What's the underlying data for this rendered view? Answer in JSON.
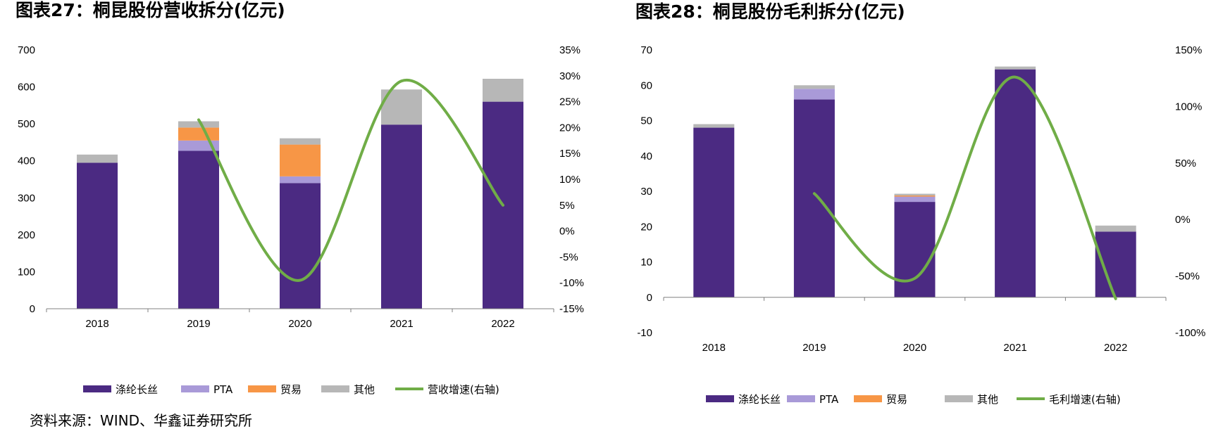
{
  "colors": {
    "polyester": "#4B2A82",
    "pta": "#A99AD8",
    "trade": "#F79646",
    "other": "#B7B7B7",
    "growth": "#70AD47"
  },
  "chart_data": [
    {
      "type": "bar",
      "stacked": true,
      "title": "图表27：桐昆股份营收拆分(亿元)",
      "categories": [
        "2018",
        "2019",
        "2020",
        "2021",
        "2022"
      ],
      "ylim": [
        0,
        700
      ],
      "yticks": [
        0,
        100,
        200,
        300,
        400,
        500,
        600,
        700
      ],
      "y2lim": [
        -15,
        35
      ],
      "y2ticks": [
        "-15%",
        "-10%",
        "-5%",
        "0%",
        "5%",
        "10%",
        "15%",
        "20%",
        "25%",
        "30%",
        "35%"
      ],
      "y2tick_values": [
        -15,
        -10,
        -5,
        0,
        5,
        10,
        15,
        20,
        25,
        30,
        35
      ],
      "series": [
        {
          "name": "涤纶长丝",
          "key": "polyester",
          "values": [
            395,
            427,
            340,
            498,
            560
          ]
        },
        {
          "name": "PTA",
          "key": "pta",
          "values": [
            0,
            28,
            18,
            0,
            0
          ]
        },
        {
          "name": "贸易",
          "key": "trade",
          "values": [
            0,
            35,
            86,
            0,
            0
          ]
        },
        {
          "name": "其他",
          "key": "other",
          "values": [
            22,
            17,
            17,
            95,
            62
          ]
        }
      ],
      "line": {
        "name": "营收增速(右轴)",
        "key": "growth",
        "categories": [
          "2019",
          "2020",
          "2021",
          "2022"
        ],
        "values": [
          21.5,
          -9.5,
          29,
          5
        ]
      }
    },
    {
      "type": "bar",
      "stacked": true,
      "title": "图表28：桐昆股份毛利拆分(亿元)",
      "categories": [
        "2018",
        "2019",
        "2020",
        "2021",
        "2022"
      ],
      "ylim": [
        -10,
        70
      ],
      "yticks": [
        -10,
        0,
        10,
        20,
        30,
        40,
        50,
        60,
        70
      ],
      "y2lim": [
        -100,
        150
      ],
      "y2ticks": [
        "-100%",
        "-50%",
        "0%",
        "50%",
        "100%",
        "150%"
      ],
      "y2tick_values": [
        -100,
        -50,
        0,
        50,
        100,
        150
      ],
      "series": [
        {
          "name": "涤纶长丝",
          "key": "polyester",
          "values": [
            48,
            56,
            27,
            64.5,
            18.6
          ]
        },
        {
          "name": "PTA",
          "key": "pta",
          "values": [
            0,
            3,
            1.5,
            0,
            0
          ]
        },
        {
          "name": "贸易",
          "key": "trade",
          "values": [
            0,
            0,
            0.3,
            0,
            0
          ]
        },
        {
          "name": "其他",
          "key": "other",
          "values": [
            1,
            1,
            0.5,
            0.8,
            1.7
          ]
        }
      ],
      "line": {
        "name": "毛利增速(右轴)",
        "key": "growth",
        "categories": [
          "2019",
          "2020",
          "2021",
          "2022"
        ],
        "values": [
          23,
          -52,
          126,
          -70
        ]
      }
    }
  ],
  "source": "资料来源：WIND、华鑫证券研究所"
}
